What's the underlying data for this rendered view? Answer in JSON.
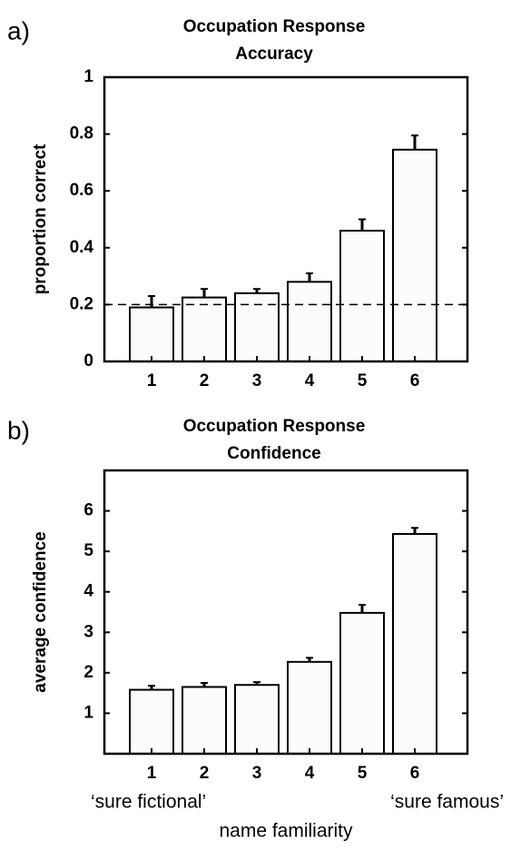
{
  "chart_data": [
    {
      "type": "bar",
      "panel": "a)",
      "title": [
        "Occupation Response",
        "Accuracy"
      ],
      "ylabel": "proportion correct",
      "categories": [
        "1",
        "2",
        "3",
        "4",
        "5",
        "6"
      ],
      "values": [
        0.19,
        0.225,
        0.24,
        0.28,
        0.46,
        0.745
      ],
      "errors": [
        0.04,
        0.03,
        0.015,
        0.03,
        0.04,
        0.05
      ],
      "color": "#fcfcfc",
      "reference_line": 0.2,
      "ylim": [
        0,
        1
      ],
      "yticks": [
        0,
        0.2,
        0.4,
        0.6,
        0.8,
        1
      ]
    },
    {
      "type": "bar",
      "panel": "b)",
      "title": [
        "Occupation Response",
        "Confidence"
      ],
      "ylabel": "average confidence",
      "xlabel": "name familiarity",
      "annotations": [
        "‘sure fictional’",
        "‘sure famous’"
      ],
      "categories": [
        "1",
        "2",
        "3",
        "4",
        "5",
        "6"
      ],
      "values": [
        1.58,
        1.65,
        1.7,
        2.27,
        3.48,
        5.43
      ],
      "errors": [
        0.1,
        0.1,
        0.07,
        0.1,
        0.2,
        0.15
      ],
      "color": "#fcfcfc",
      "ylim": [
        0,
        7
      ],
      "yticks": [
        1,
        2,
        3,
        4,
        5,
        6
      ]
    }
  ]
}
